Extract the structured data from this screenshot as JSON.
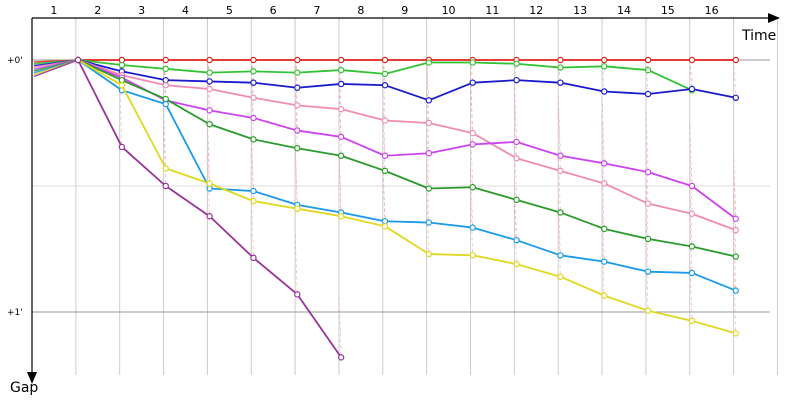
{
  "chart_data": {
    "type": "line",
    "title": "",
    "xlabel": "Time",
    "ylabel": "Gap",
    "x_ticks": [
      "1",
      "2",
      "3",
      "4",
      "5",
      "6",
      "7",
      "8",
      "9",
      "10",
      "11",
      "12",
      "13",
      "14",
      "15",
      "16"
    ],
    "y_ticks": [
      "+0'",
      "+1'"
    ],
    "ylim": [
      0,
      1.15
    ],
    "y_inverted": true,
    "grid": true,
    "series": [
      {
        "color": "#e0201a",
        "points": [
          [
            1.55,
            0
          ],
          [
            2.55,
            0
          ],
          [
            3.55,
            0
          ],
          [
            4.55,
            0
          ],
          [
            5.55,
            0
          ],
          [
            6.55,
            0
          ],
          [
            7.55,
            0
          ],
          [
            8.55,
            0
          ],
          [
            9.55,
            0
          ],
          [
            10.55,
            0
          ],
          [
            11.55,
            0
          ],
          [
            12.55,
            0
          ],
          [
            13.55,
            0
          ],
          [
            14.55,
            0
          ],
          [
            15.55,
            0
          ],
          [
            16.55,
            0
          ]
        ]
      },
      {
        "color": "#33c233",
        "points": [
          [
            1.55,
            0
          ],
          [
            2.55,
            0.02
          ],
          [
            3.55,
            0.035
          ],
          [
            4.55,
            0.05
          ],
          [
            5.55,
            0.045
          ],
          [
            6.55,
            0.05
          ],
          [
            7.55,
            0.04
          ],
          [
            8.55,
            0.055
          ],
          [
            9.55,
            0.01
          ],
          [
            10.55,
            0.01
          ],
          [
            11.55,
            0.015
          ],
          [
            12.55,
            0.03
          ],
          [
            13.55,
            0.025
          ],
          [
            14.55,
            0.04
          ],
          [
            15.55,
            0.12
          ]
        ]
      },
      {
        "color": "#1a1acc",
        "points": [
          [
            1.55,
            0
          ],
          [
            2.55,
            0.045
          ],
          [
            3.55,
            0.08
          ],
          [
            4.55,
            0.085
          ],
          [
            5.55,
            0.09
          ],
          [
            6.55,
            0.11
          ],
          [
            7.55,
            0.095
          ],
          [
            8.55,
            0.1
          ],
          [
            9.55,
            0.16
          ],
          [
            10.55,
            0.09
          ],
          [
            11.55,
            0.08
          ],
          [
            12.55,
            0.09
          ],
          [
            13.55,
            0.125
          ],
          [
            14.55,
            0.135
          ],
          [
            15.55,
            0.115
          ],
          [
            16.55,
            0.15
          ]
        ]
      },
      {
        "color": "#f08cb4",
        "points": [
          [
            1.55,
            0
          ],
          [
            2.55,
            0.06
          ],
          [
            3.55,
            0.1
          ],
          [
            4.55,
            0.115
          ],
          [
            5.55,
            0.15
          ],
          [
            6.55,
            0.18
          ],
          [
            7.55,
            0.195
          ],
          [
            8.55,
            0.24
          ],
          [
            9.55,
            0.25
          ],
          [
            10.55,
            0.29
          ],
          [
            11.55,
            0.39
          ],
          [
            12.55,
            0.44
          ],
          [
            13.55,
            0.49
          ],
          [
            14.55,
            0.57
          ],
          [
            15.55,
            0.61
          ],
          [
            16.55,
            0.675
          ]
        ]
      },
      {
        "color": "#cc44ee",
        "points": [
          [
            1.55,
            0
          ],
          [
            2.55,
            0.07
          ],
          [
            3.55,
            0.16
          ],
          [
            4.55,
            0.2
          ],
          [
            5.55,
            0.23
          ],
          [
            6.55,
            0.28
          ],
          [
            7.55,
            0.305
          ],
          [
            8.55,
            0.38
          ],
          [
            9.55,
            0.37
          ],
          [
            10.55,
            0.335
          ],
          [
            11.55,
            0.325
          ],
          [
            12.55,
            0.38
          ],
          [
            13.55,
            0.41
          ],
          [
            14.55,
            0.445
          ],
          [
            15.55,
            0.5
          ],
          [
            16.55,
            0.63
          ]
        ]
      },
      {
        "color": "#2a9a2a",
        "points": [
          [
            1.55,
            0
          ],
          [
            2.55,
            0.08
          ],
          [
            3.55,
            0.155
          ],
          [
            4.55,
            0.255
          ],
          [
            5.55,
            0.315
          ],
          [
            6.55,
            0.35
          ],
          [
            7.55,
            0.38
          ],
          [
            8.55,
            0.44
          ],
          [
            9.55,
            0.51
          ],
          [
            10.55,
            0.505
          ],
          [
            11.55,
            0.555
          ],
          [
            12.55,
            0.605
          ],
          [
            13.55,
            0.67
          ],
          [
            14.55,
            0.71
          ],
          [
            15.55,
            0.74
          ],
          [
            16.55,
            0.78
          ]
        ]
      },
      {
        "color": "#1a9ae8",
        "points": [
          [
            1.55,
            0
          ],
          [
            2.55,
            0.12
          ],
          [
            3.55,
            0.175
          ],
          [
            4.55,
            0.51
          ],
          [
            5.55,
            0.52
          ],
          [
            6.55,
            0.575
          ],
          [
            7.55,
            0.605
          ],
          [
            8.55,
            0.64
          ],
          [
            9.55,
            0.645
          ],
          [
            10.55,
            0.665
          ],
          [
            11.55,
            0.715
          ],
          [
            12.55,
            0.775
          ],
          [
            13.55,
            0.8
          ],
          [
            14.55,
            0.84
          ],
          [
            15.55,
            0.845
          ],
          [
            16.55,
            0.915
          ]
        ]
      },
      {
        "color": "#e0d820",
        "points": [
          [
            1.55,
            0
          ],
          [
            2.55,
            0.1
          ],
          [
            3.55,
            0.43
          ],
          [
            4.55,
            0.49
          ],
          [
            5.55,
            0.56
          ],
          [
            6.55,
            0.59
          ],
          [
            7.55,
            0.62
          ],
          [
            8.55,
            0.66
          ],
          [
            9.55,
            0.77
          ],
          [
            10.55,
            0.775
          ],
          [
            11.55,
            0.81
          ],
          [
            12.55,
            0.86
          ],
          [
            13.55,
            0.935
          ],
          [
            14.55,
            0.995
          ],
          [
            15.55,
            1.035
          ],
          [
            16.55,
            1.085
          ]
        ]
      },
      {
        "color": "#993399",
        "points": [
          [
            1.55,
            0
          ],
          [
            2.55,
            0.345
          ],
          [
            3.55,
            0.5
          ],
          [
            4.55,
            0.62
          ],
          [
            5.55,
            0.785
          ],
          [
            6.55,
            0.93
          ],
          [
            7.55,
            1.18
          ]
        ]
      }
    ]
  }
}
